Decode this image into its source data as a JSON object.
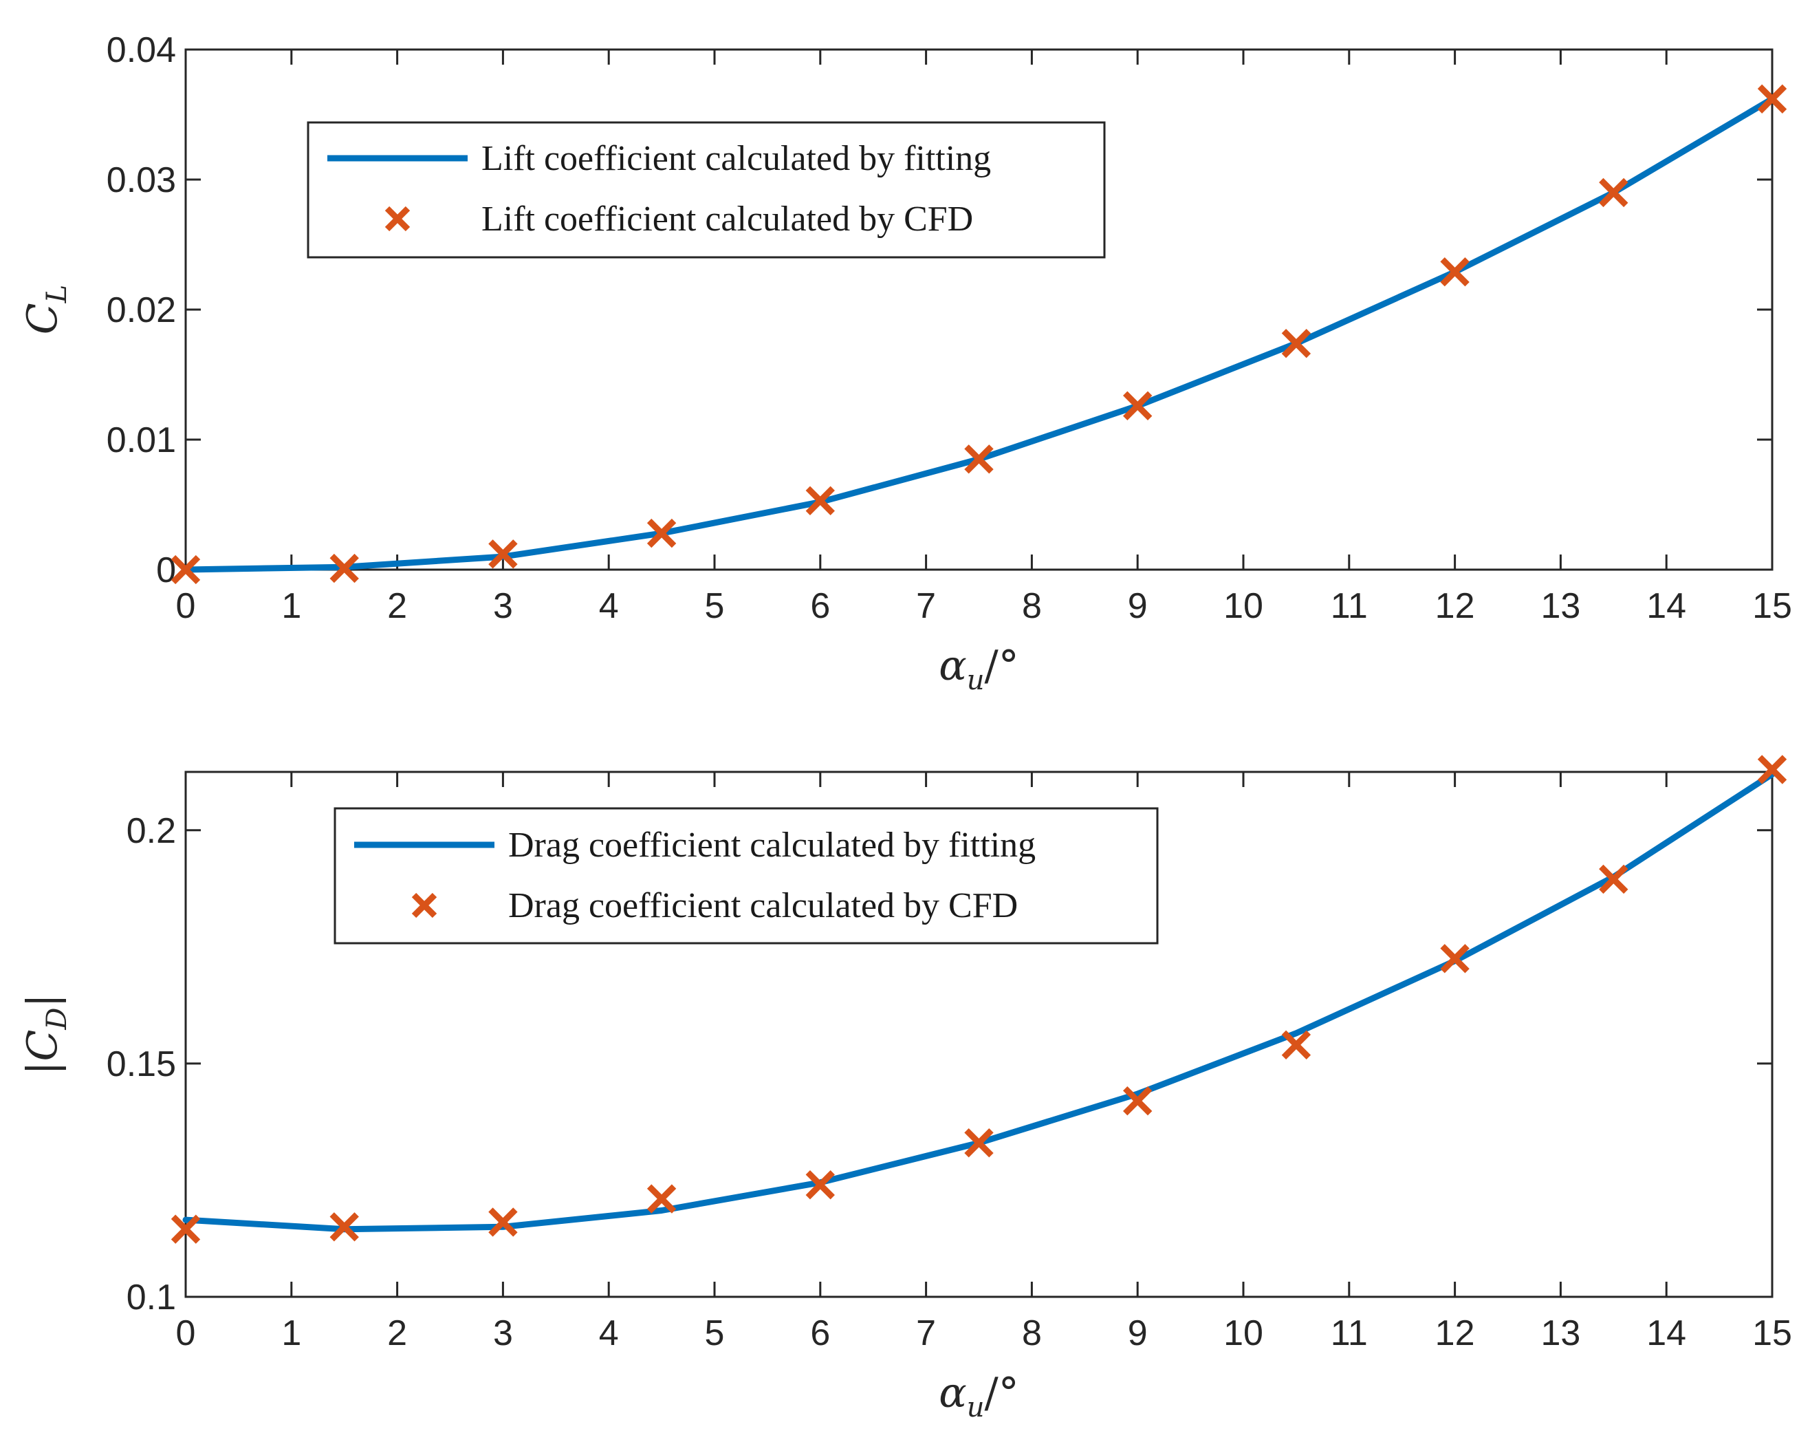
{
  "chart_data": [
    {
      "type": "line",
      "id": "lift",
      "x": [
        0,
        1.5,
        3,
        4.5,
        6,
        7.5,
        9,
        10.5,
        12,
        13.5,
        15
      ],
      "series": [
        {
          "name": "Lift coefficient calculated by fitting",
          "style": "line",
          "color": "#0072BD",
          "values": [
            0.0,
            0.0002,
            0.001,
            0.0028,
            0.0052,
            0.0085,
            0.0126,
            0.0174,
            0.0229,
            0.029,
            0.0362
          ]
        },
        {
          "name": "Lift coefficient calculated by CFD",
          "style": "marker-x",
          "color": "#D95319",
          "values": [
            0.0,
            0.0001,
            0.0012,
            0.0028,
            0.0053,
            0.0085,
            0.0126,
            0.0174,
            0.0229,
            0.029,
            0.0362
          ]
        }
      ],
      "xlim": [
        0,
        15
      ],
      "ylim": [
        0,
        0.04
      ],
      "xticks": [
        0,
        1,
        2,
        3,
        4,
        5,
        6,
        7,
        8,
        9,
        10,
        11,
        12,
        13,
        14,
        15
      ],
      "yticks": [
        0,
        0.01,
        0.02,
        0.03,
        0.04
      ],
      "ytick_labels": [
        "0",
        "0.01",
        "0.02",
        "0.03",
        "0.04"
      ],
      "xlabel": {
        "main": "α",
        "sub": "u",
        "suffix": "/°"
      },
      "ylabel": {
        "main": "C",
        "sub": "L",
        "prefix": "",
        "suffix": ""
      },
      "legend_position": "top-left"
    },
    {
      "type": "line",
      "id": "drag",
      "x": [
        0,
        1.5,
        3,
        4.5,
        6,
        7.5,
        9,
        10.5,
        12,
        13.5,
        15
      ],
      "series": [
        {
          "name": "Drag coefficient calculated by fitting",
          "style": "line",
          "color": "#0072BD",
          "values": [
            0.1165,
            0.1145,
            0.115,
            0.1185,
            0.1245,
            0.133,
            0.1435,
            0.1565,
            0.172,
            0.19,
            0.212
          ]
        },
        {
          "name": "Drag coefficient calculated by CFD",
          "style": "marker-x",
          "color": "#D95319",
          "values": [
            0.1145,
            0.115,
            0.116,
            0.121,
            0.124,
            0.133,
            0.142,
            0.154,
            0.1725,
            0.1895,
            0.213
          ]
        }
      ],
      "xlim": [
        0,
        15
      ],
      "ylim": [
        0.1,
        0.2125
      ],
      "xticks": [
        0,
        1,
        2,
        3,
        4,
        5,
        6,
        7,
        8,
        9,
        10,
        11,
        12,
        13,
        14,
        15
      ],
      "yticks": [
        0.1,
        0.15,
        0.2
      ],
      "ytick_labels": [
        "0.1",
        "0.15",
        "0.2"
      ],
      "xlabel": {
        "main": "α",
        "sub": "u",
        "suffix": "/°"
      },
      "ylabel": {
        "main": "C",
        "sub": "D",
        "prefix": "|",
        "suffix": "|"
      },
      "legend_position": "top-left"
    }
  ]
}
